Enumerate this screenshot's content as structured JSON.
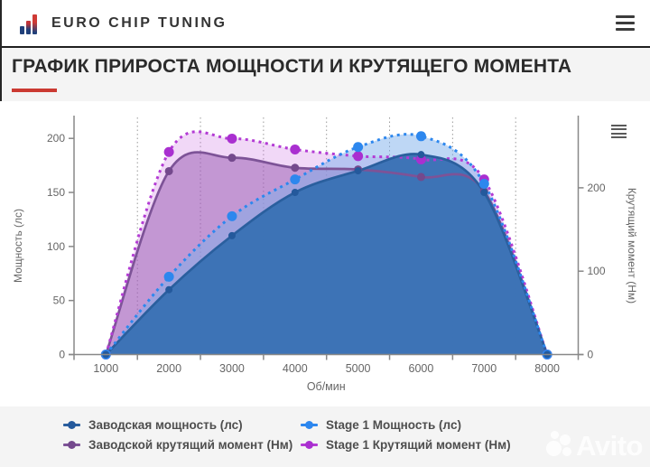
{
  "header": {
    "brand": "EURO CHIP TUNING",
    "menu_icon": "hamburger-icon"
  },
  "title": {
    "text": "ГРАФИК ПРИРОСТА МОЩНОСТИ И КРУТЯЩЕГО МОМЕНТА",
    "accent_color": "#cb3a32"
  },
  "chart_data": {
    "type": "line",
    "x_categories": [
      1000,
      2000,
      3000,
      4000,
      5000,
      6000,
      7000,
      8000
    ],
    "xlabel": "Об/мин",
    "y_left": {
      "label": "Мощность (лс)",
      "ticks": [
        0,
        50,
        100,
        150,
        200
      ]
    },
    "y_right": {
      "label": "Крутящий момент (Нм)",
      "ticks": [
        0,
        100,
        200
      ]
    },
    "grid": "vertical-dotted",
    "legend_position": "bottom",
    "series": [
      {
        "name": "Заводская мощность (лс)",
        "axis": "left",
        "line_style": "solid",
        "color": "#2a5f9e",
        "point_color": "#24599c",
        "fill": "rgba(58,114,181,0.97)",
        "point_radius": 4,
        "values": [
          0,
          60,
          110,
          150,
          170,
          185,
          150,
          0
        ]
      },
      {
        "name": "Stage 1 Мощность (лс)",
        "axis": "left",
        "line_style": "dotted",
        "color": "#2d87ee",
        "point_color": "#2d87ee",
        "fill": "rgba(125,175,235,0.5)",
        "point_radius": 5.5,
        "values": [
          0,
          72,
          128,
          162,
          192,
          202,
          158,
          0
        ]
      },
      {
        "name": "Заводской крутящий момент (Нм)",
        "axis": "right",
        "line_style": "solid",
        "color": "#7d5397",
        "point_color": "#74498d",
        "fill": "rgba(150,85,175,0.5)",
        "point_radius": 4.5,
        "values": [
          0,
          220,
          236,
          224,
          222,
          213,
          196,
          0
        ]
      },
      {
        "name": "Stage 1 Крутящий момент (Нм)",
        "axis": "right",
        "line_style": "dotted",
        "color": "#b33bd4",
        "point_color": "#a92fd0",
        "fill": "rgba(205,115,225,0.28)",
        "point_radius": 5.5,
        "values": [
          0,
          243,
          259,
          246,
          238,
          234,
          210,
          0
        ]
      }
    ]
  },
  "watermark": {
    "text": "Avito"
  }
}
